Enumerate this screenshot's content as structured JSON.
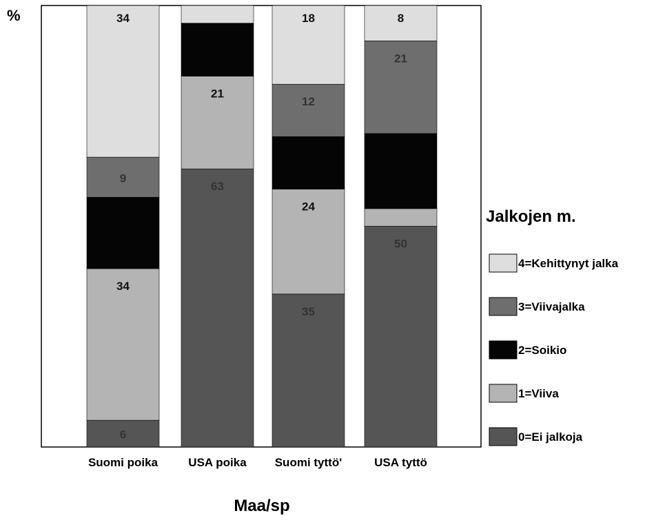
{
  "chart_data": {
    "type": "bar",
    "stacked": true,
    "percent": true,
    "ylabel": "%",
    "xlabel": "Maa/sp",
    "ylim": [
      0,
      100
    ],
    "grid": false,
    "legend_title": "Jalkojen m.",
    "legend_position": "right",
    "categories": [
      "Suomi poika",
      "USA poika",
      "Suomi  tyttö'",
      "USA tyttö"
    ],
    "series": [
      {
        "name": "0=Ei jalkoja",
        "color": "#555555",
        "values": [
          6,
          63,
          35,
          50
        ]
      },
      {
        "name": "1=Viiva",
        "color": "#b4b4b4",
        "values": [
          34,
          21,
          24,
          4
        ]
      },
      {
        "name": "2=Soikio",
        "color": "#050505",
        "values": [
          16,
          12,
          12,
          17
        ]
      },
      {
        "name": "3=Viivajalka",
        "color": "#6e6e6e",
        "values": [
          9,
          0,
          12,
          21
        ]
      },
      {
        "name": "4=Kehittynyt jalka",
        "color": "#dedede",
        "values": [
          34,
          4,
          18,
          8
        ]
      }
    ],
    "data_labels": [
      {
        "category": 0,
        "series": 0,
        "text": "6"
      },
      {
        "category": 0,
        "series": 1,
        "text": "34"
      },
      {
        "category": 0,
        "series": 3,
        "text": "9"
      },
      {
        "category": 0,
        "series": 4,
        "text": "34"
      },
      {
        "category": 1,
        "series": 0,
        "text": "63"
      },
      {
        "category": 1,
        "series": 1,
        "text": "21"
      },
      {
        "category": 2,
        "series": 0,
        "text": "35"
      },
      {
        "category": 2,
        "series": 1,
        "text": "24"
      },
      {
        "category": 2,
        "series": 3,
        "text": "12"
      },
      {
        "category": 2,
        "series": 4,
        "text": "18"
      },
      {
        "category": 3,
        "series": 0,
        "text": "50"
      },
      {
        "category": 3,
        "series": 3,
        "text": "21"
      },
      {
        "category": 3,
        "series": 4,
        "text": "8"
      }
    ]
  }
}
